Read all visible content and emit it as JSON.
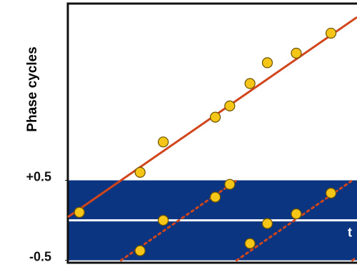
{
  "chart_data": {
    "type": "scatter",
    "ylabel": "Phase cycles",
    "xlabel": "t",
    "xlim": [
      0,
      10
    ],
    "ylim": [
      -0.53,
      2.71
    ],
    "yticks": [
      {
        "value": 0.5,
        "label": "+0.5"
      },
      {
        "value": -0.5,
        "label": "-0.5"
      }
    ],
    "band": [
      -0.5,
      0.5
    ],
    "band_color": "#0b3580",
    "series": [
      {
        "mark": "line",
        "color": "#d0451b",
        "x": [
          0,
          10
        ],
        "values": [
          0.04,
          2.54
        ]
      },
      {
        "mark": "dotted",
        "color": "#d0451b",
        "x": [
          1.84,
          5.84,
          5.84,
          5.84,
          9.84,
          9.84,
          9.84,
          10
        ],
        "values": [
          -0.5,
          0.5,
          null,
          -0.5,
          0.5,
          null,
          -0.5,
          -0.46
        ]
      },
      {
        "mark": "point",
        "color": "#f5c518",
        "x": [
          0.4,
          2.5,
          3.3,
          5.1,
          5.6,
          6.3,
          6.9,
          7.9,
          9.1
        ],
        "values": [
          0.1,
          0.6,
          0.98,
          1.29,
          1.43,
          1.71,
          1.97,
          2.09,
          2.34
        ]
      },
      {
        "mark": "point",
        "color": "#f5c518",
        "x": [
          0.4,
          2.5,
          3.3,
          5.1,
          5.6,
          6.3,
          6.9,
          7.9,
          9.1
        ],
        "values": [
          0.1,
          -0.38,
          0.0,
          0.29,
          0.45,
          -0.29,
          -0.04,
          0.08,
          0.34
        ]
      }
    ]
  }
}
